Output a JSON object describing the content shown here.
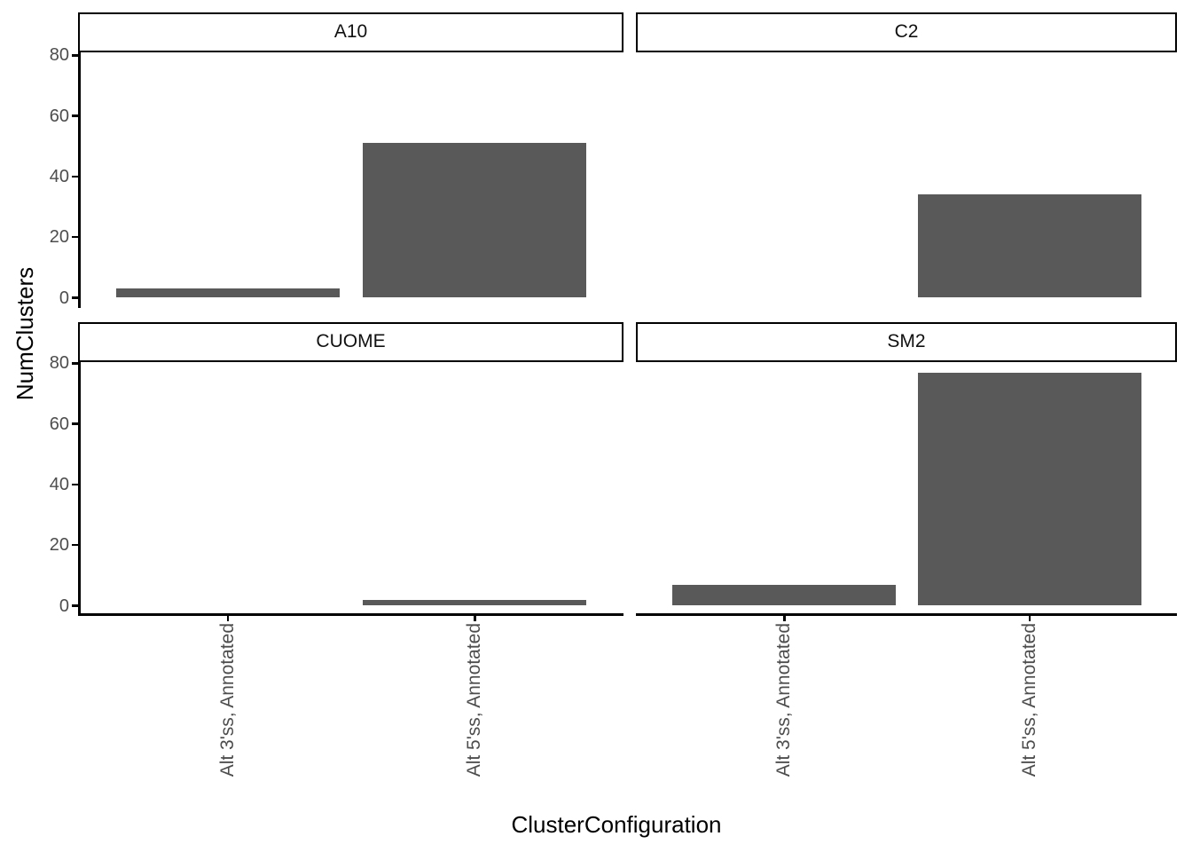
{
  "chart_data": {
    "type": "bar",
    "title": "",
    "facets": [
      {
        "label": "A10",
        "values": [
          3,
          51
        ]
      },
      {
        "label": "C2",
        "values": [
          0,
          34
        ]
      },
      {
        "label": "CUOME",
        "values": [
          0,
          2
        ]
      },
      {
        "label": "SM2",
        "values": [
          7,
          77
        ]
      }
    ],
    "categories": [
      "Alt 3'ss, Annotated",
      "Alt 5'ss, Annotated"
    ],
    "xlabel": "ClusterConfiguration",
    "ylabel": "NumClusters",
    "yticks": [
      0,
      20,
      40,
      60,
      80
    ],
    "ylim": [
      0,
      81
    ],
    "bar_color": "#595959",
    "axis_text_color": "#4d4d4d",
    "strip_background": "#ffffff",
    "strip_border_color": "#000000",
    "grid": false,
    "legend": "none",
    "facet_layout": "2x2 grid, shared y axis on left column, shared x axis on bottom row"
  }
}
